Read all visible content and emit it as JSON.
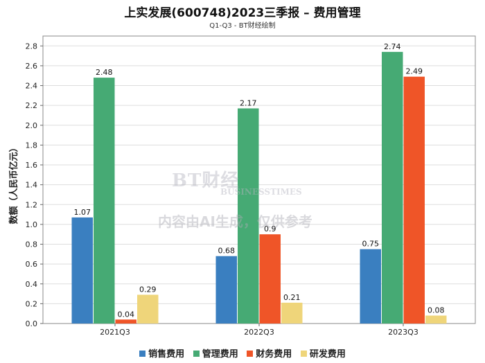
{
  "chart_data": {
    "type": "bar",
    "title": "上实发展(600748)2023三季报 – 费用管理",
    "subtitle": "Q1-Q3 - BT财经绘制",
    "xlabel": "",
    "ylabel": "数额（人民币亿元）",
    "ylim": [
      0,
      2.9
    ],
    "yticks": [
      "0.0",
      "0.2",
      "0.4",
      "0.6",
      "0.8",
      "1.0",
      "1.2",
      "1.4",
      "1.6",
      "1.8",
      "2.0",
      "2.2",
      "2.4",
      "2.6",
      "2.8"
    ],
    "categories": [
      "2021Q3",
      "2022Q3",
      "2023Q3"
    ],
    "series": [
      {
        "name": "销售费用",
        "color": "#3a7fc0",
        "values": [
          1.07,
          0.68,
          0.75
        ],
        "labels": [
          "1.07",
          "0.68",
          "0.75"
        ]
      },
      {
        "name": "管理费用",
        "color": "#46aa74",
        "values": [
          2.48,
          2.17,
          2.74
        ],
        "labels": [
          "2.48",
          "2.17",
          "2.74"
        ]
      },
      {
        "name": "财务费用",
        "color": "#ef5528",
        "values": [
          0.04,
          0.9,
          2.49
        ],
        "labels": [
          "0.04",
          "0.9",
          "2.49"
        ]
      },
      {
        "name": "研发费用",
        "color": "#efd57a",
        "values": [
          0.29,
          0.21,
          0.08
        ],
        "labels": [
          "0.29",
          "0.21",
          "0.08"
        ]
      }
    ],
    "grid": true,
    "legend_position": "bottom"
  },
  "watermark": {
    "brand": "BT财经",
    "brand_en": "BUSINESSTIMES",
    "notice": "内容由AI生成，仅供参考"
  }
}
